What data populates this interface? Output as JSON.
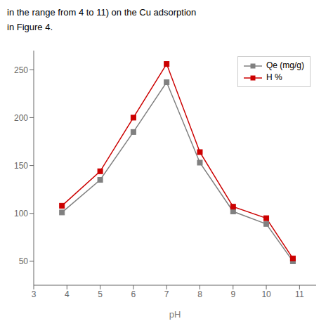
{
  "chart_data": {
    "type": "line",
    "title": "in the range from 4 to 11) on the Cu adsorption",
    "subtitle": "in Figure 4.",
    "x_label": "pH",
    "x": [
      3.85,
      5.0,
      6.0,
      7.0,
      8.0,
      9.0,
      10.0,
      10.8
    ],
    "series": [
      {
        "name": "Qe (mg/g)",
        "color": "#808080",
        "marker": "square",
        "values": [
          101,
          135,
          185,
          237,
          153,
          102,
          89,
          50
        ]
      },
      {
        "name": "H %",
        "color": "#cc0000",
        "marker": "square",
        "values": [
          108,
          144,
          200,
          256,
          164,
          107,
          95,
          53
        ]
      }
    ],
    "xlim": [
      3.0,
      11.5
    ],
    "ylim": [
      25,
      270
    ],
    "xticks": [
      3,
      4,
      5,
      6,
      7,
      8,
      9,
      10,
      11
    ],
    "yticks": [
      50,
      100,
      150,
      200,
      250
    ],
    "grid": false,
    "legend": "upper right"
  }
}
